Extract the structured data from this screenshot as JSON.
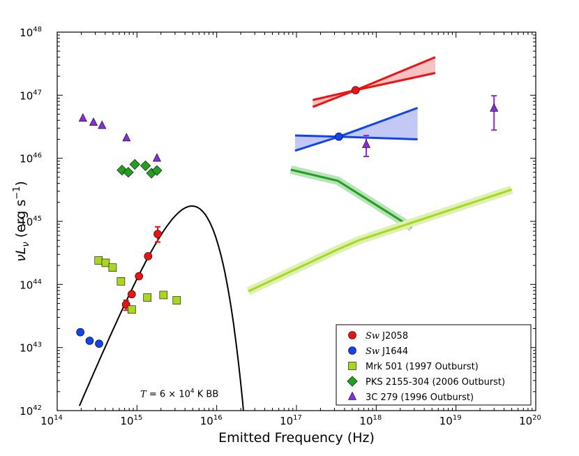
{
  "chart_data": {
    "type": "scatter",
    "xscale": "log",
    "yscale": "log",
    "xlim": [
      100000000000000.0,
      1e+20
    ],
    "ylim": [
      1e+42,
      1e+48
    ],
    "xlabel": "Emitted Frequency (Hz)",
    "ylabel_parts": [
      "νL",
      "ν",
      " (erg s",
      "−1",
      ")"
    ],
    "x_ticks": [
      {
        "value": 100000000000000.0,
        "base": "10",
        "exp": "14"
      },
      {
        "value": 1000000000000000.0,
        "base": "10",
        "exp": "15"
      },
      {
        "value": 1e+16,
        "base": "10",
        "exp": "16"
      },
      {
        "value": 1e+17,
        "base": "10",
        "exp": "17"
      },
      {
        "value": 1e+18,
        "base": "10",
        "exp": "18"
      },
      {
        "value": 1e+19,
        "base": "10",
        "exp": "19"
      },
      {
        "value": 1e+20,
        "base": "10",
        "exp": "20"
      }
    ],
    "y_ticks": [
      {
        "value": 1e+42,
        "base": "10",
        "exp": "42"
      },
      {
        "value": 1e+43,
        "base": "10",
        "exp": "43"
      },
      {
        "value": 1e+44,
        "base": "10",
        "exp": "44"
      },
      {
        "value": 1e+45,
        "base": "10",
        "exp": "45"
      },
      {
        "value": 1e+46,
        "base": "10",
        "exp": "46"
      },
      {
        "value": 1e+47,
        "base": "10",
        "exp": "47"
      },
      {
        "value": 1e+48,
        "base": "10",
        "exp": "48"
      }
    ],
    "series": [
      {
        "name": "Sw J2058",
        "italic": "Sw",
        "suffix": " J2058",
        "marker": "circle",
        "color": "#ee1111",
        "x": [
          730000000000000.0,
          860000000000000.0,
          1060000000000000.0,
          1380000000000000.0,
          1820000000000000.0,
          5.5e+17
        ],
        "y": [
          4.8e+43,
          7e+43,
          1.35e+44,
          2.8e+44,
          6.3e+44,
          1.2e+47
        ],
        "yerr_low": [
          3.9e+43,
          null,
          null,
          null,
          4.7e+44,
          null
        ],
        "yerr_high": [
          5.6e+43,
          null,
          null,
          null,
          8.2e+44,
          null
        ]
      },
      {
        "name": "Sw J1644",
        "italic": "Sw",
        "suffix": " J1644",
        "marker": "circle",
        "color": "#1144ee",
        "x": [
          195000000000000.0,
          255000000000000.0,
          335000000000000.0,
          3.4e+17
        ],
        "y": [
          1.75e+43,
          1.28e+43,
          1.15e+43,
          2.2e+46
        ]
      },
      {
        "name": "Mrk 501 (1997 Outburst)",
        "marker": "square",
        "color": "#a8d81e",
        "x": [
          330000000000000.0,
          405000000000000.0,
          495000000000000.0,
          630000000000000.0,
          860000000000000.0,
          1350000000000000.0,
          2150000000000000.0,
          3150000000000000.0
        ],
        "y": [
          2.4e+44,
          2.2e+44,
          1.85e+44,
          1.12e+44,
          4e+43,
          6.2e+43,
          6.8e+43,
          5.6e+43
        ]
      },
      {
        "name": "PKS 2155-304 (2006 Outburst)",
        "marker": "diamond",
        "color": "#22a022",
        "x": [
          650000000000000.0,
          780000000000000.0,
          940000000000000.0,
          1280000000000000.0,
          1520000000000000.0,
          1780000000000000.0
        ],
        "y": [
          6.5e+45,
          6e+45,
          8e+45,
          7.6e+45,
          5.8e+45,
          6.4e+45
        ]
      },
      {
        "name": "3C 279 (1996 Outburst)",
        "marker": "triangle",
        "color": "#8a2be2",
        "x": [
          210000000000000.0,
          285000000000000.0,
          365000000000000.0,
          740000000000000.0,
          1780000000000000.0,
          7.5e+17,
          3e+19
        ],
        "y": [
          4.3e+46,
          3.7e+46,
          3.3e+46,
          2.1e+46,
          1e+46,
          1.65e+46,
          6.2e+46
        ],
        "yerr_low": [
          null,
          null,
          null,
          null,
          null,
          1.07e+46,
          2.8e+46
        ],
        "yerr_high": [
          null,
          null,
          null,
          null,
          null,
          2.3e+46,
          9.8e+46
        ]
      }
    ],
    "bands": [
      {
        "name": "Sw J2058 X-ray slope band",
        "color": "#ee1111",
        "fill": "#f7c2c2",
        "upper": {
          "x": [
            1.6e+17,
            5.5e+17,
            5.5e+18
          ],
          "y": [
            8.4e+46,
            1.2e+47,
            4e+47
          ]
        },
        "lower": {
          "x": [
            1.6e+17,
            5.5e+17,
            5.5e+18
          ],
          "y": [
            6.5e+46,
            1.2e+47,
            2.25e+47
          ]
        }
      },
      {
        "name": "Sw J1644 X-ray slope band",
        "color": "#1144ee",
        "fill": "#c3c9f5",
        "upper": {
          "x": [
            9.6e+16,
            3.4e+17,
            3.3e+18
          ],
          "y": [
            2.3e+46,
            2.2e+46,
            6.3e+46
          ]
        },
        "lower": {
          "x": [
            9.6e+16,
            3.4e+17,
            3.3e+18
          ],
          "y": [
            1.32e+46,
            2.2e+46,
            2e+46
          ]
        }
      }
    ],
    "lines": [
      {
        "name": "PKS 2155-304 X-ray spectrum",
        "color": "#22a022",
        "band": "#b7e3b7",
        "x": [
          8.5e+16,
          3.3e+17,
          2.8e+18
        ],
        "y": [
          6.6e+45,
          4.4e+45,
          8e+44
        ]
      },
      {
        "name": "Mrk 501 X-ray spectrum",
        "color": "#a8d81e",
        "band": "#dff0b4",
        "x": [
          2.5e+16,
          3.3e+17,
          6e+17,
          5e+19
        ],
        "y": [
          7.8e+43,
          3.6e+44,
          5e+44,
          3.2e+45
        ]
      }
    ],
    "blackbody": {
      "temperature_K": 60000,
      "peak_nuLnu": 1.75e+45,
      "x_min": 190000000000000.0,
      "x_max": 2.3e+16,
      "color": "#000000"
    },
    "annotation": {
      "prefix": "T",
      "mid": " = 6 × 10",
      "exp": "4",
      "suffix": "  K BB",
      "x": 1100000000000000.0,
      "y": 1.65e+42
    },
    "legend": {
      "placement": "lower-right",
      "entries": [
        {
          "italic": "Sw",
          "text": " J2058",
          "marker": "circle",
          "color": "#ee1111"
        },
        {
          "italic": "Sw",
          "text": " J1644",
          "marker": "circle",
          "color": "#1144ee"
        },
        {
          "italic": "",
          "text": "Mrk 501 (1997 Outburst)",
          "marker": "square",
          "color": "#a8d81e"
        },
        {
          "italic": "",
          "text": "PKS 2155-304 (2006 Outburst)",
          "marker": "diamond",
          "color": "#22a022"
        },
        {
          "italic": "",
          "text": "3C 279 (1996 Outburst)",
          "marker": "triangle",
          "color": "#8a2be2"
        }
      ]
    }
  }
}
